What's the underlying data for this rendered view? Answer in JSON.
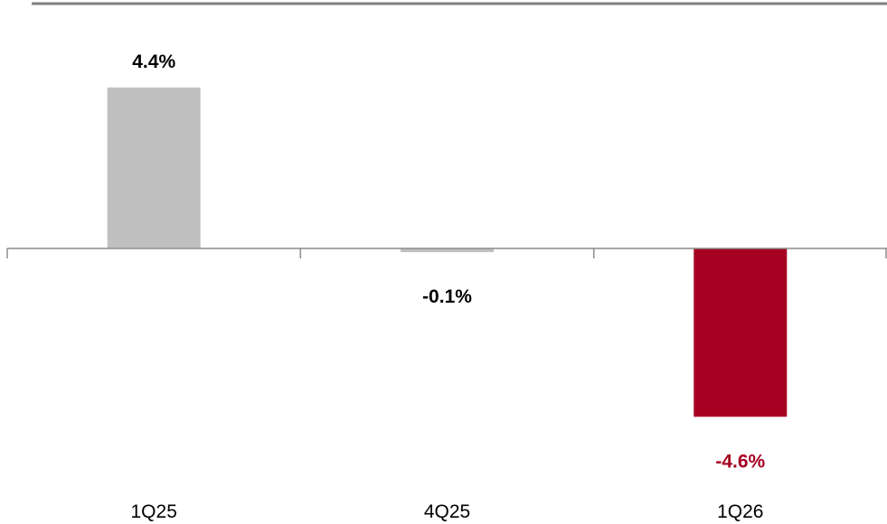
{
  "chart_data": {
    "type": "bar",
    "title": "",
    "xlabel": "",
    "ylabel": "",
    "categories": [
      "1Q25",
      "4Q25",
      "1Q26"
    ],
    "values": [
      4.4,
      -0.1,
      -4.6
    ],
    "labels": [
      "4.4%",
      "-0.1%",
      "-4.6%"
    ],
    "ylim": [
      -5.0,
      5.0
    ],
    "grid": false,
    "legend": "none",
    "colors": {
      "bars": [
        "#c0c0c0",
        "#c0c0c0",
        "#a50021"
      ],
      "labels": [
        "#000000",
        "#000000",
        "#a50021"
      ],
      "axis": "#8c8c8c",
      "top_rule": "#7f7f7f"
    }
  }
}
